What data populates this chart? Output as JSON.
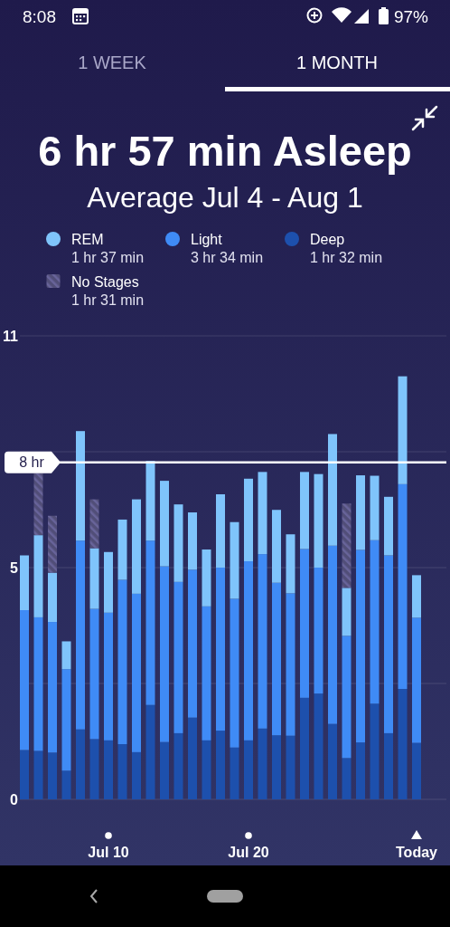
{
  "chart_data": {
    "type": "bar",
    "title": "6 hr 57 min Asleep",
    "subtitle": "Average Jul 4 - Aug 1",
    "categories": [
      null,
      null,
      null,
      null,
      null,
      null,
      "Jul 10",
      null,
      null,
      null,
      null,
      null,
      null,
      null,
      null,
      null,
      "Jul 20",
      null,
      null,
      null,
      null,
      null,
      null,
      null,
      null,
      null,
      null,
      null,
      "Today"
    ],
    "stacked": true,
    "series": [
      {
        "name": "Deep",
        "color": "#1d50ad",
        "values": [
          1.17,
          1.15,
          1.11,
          0.68,
          1.66,
          1.43,
          1.4,
          1.31,
          1.12,
          2.24,
          1.36,
          1.57,
          1.94,
          1.4,
          1.63,
          1.23,
          1.4,
          1.68,
          1.52,
          1.51,
          2.41,
          2.51,
          1.79,
          0.98,
          1.35,
          2.27,
          1.57,
          2.62,
          1.34
        ]
      },
      {
        "name": "Light",
        "color": "#3f8bf6",
        "values": [
          3.32,
          3.17,
          3.1,
          2.41,
          4.48,
          3.09,
          3.03,
          3.9,
          3.76,
          3.9,
          4.17,
          3.59,
          3.51,
          3.18,
          3.87,
          3.53,
          4.25,
          4.14,
          3.62,
          3.38,
          3.53,
          2.99,
          4.23,
          2.9,
          4.57,
          3.88,
          4.22,
          4.86,
          2.97
        ]
      },
      {
        "name": "REM",
        "color": "#7fc4fb",
        "values": [
          1.3,
          1.95,
          1.17,
          0.66,
          2.6,
          1.44,
          1.44,
          1.43,
          2.24,
          1.89,
          2.03,
          1.84,
          1.36,
          1.35,
          1.74,
          1.82,
          1.96,
          1.95,
          1.73,
          1.4,
          1.83,
          2.22,
          2.65,
          1.14,
          1.77,
          1.53,
          1.39,
          2.56,
          1.01
        ]
      },
      {
        "name": "No Stages",
        "color": "#514e78",
        "values": [
          null,
          1.47,
          1.35,
          null,
          null,
          1.16,
          null,
          null,
          null,
          null,
          null,
          null,
          null,
          null,
          null,
          null,
          null,
          null,
          null,
          null,
          null,
          null,
          null,
          2.0,
          null,
          null,
          null,
          null,
          null
        ]
      }
    ],
    "ylim": [
      0,
      11
    ],
    "yticks": [
      0,
      {
        "value": 2.75,
        "label": null
      },
      {
        "value": 5.5,
        "label": "5"
      },
      {
        "value": 8.25,
        "label": null
      },
      11
    ],
    "grid": "y",
    "legend": "top",
    "ref_lines": [
      {
        "axis": "y",
        "value": 8,
        "label": "8 hr",
        "color": "#ffffff"
      }
    ],
    "annotations": [
      "8:08",
      "97%",
      "1 WEEK",
      "1 MONTH",
      "1 hr 37 min",
      "3 hr 34 min",
      "1 hr 32 min",
      "1 hr 31 min"
    ]
  }
}
